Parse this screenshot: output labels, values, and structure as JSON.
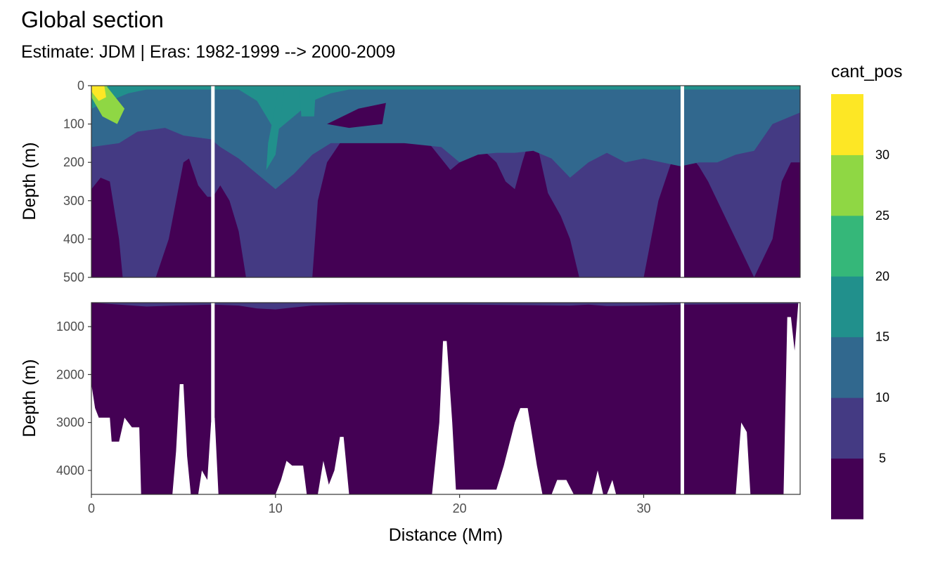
{
  "chart_data": {
    "type": "heatmap",
    "title": "Global section",
    "subtitle": "Estimate: JDM  | Eras: 1982-1999 --> 2000-2009",
    "xlabel": "Distance (Mm)",
    "ylabel": "Depth (m)",
    "xlim": [
      0,
      38.5
    ],
    "x_ticks": [
      0,
      10,
      20,
      30
    ],
    "panels": [
      {
        "name": "upper",
        "ylim": [
          0,
          500
        ],
        "y_ticks": [
          0,
          100,
          200,
          300,
          400,
          500
        ]
      },
      {
        "name": "lower",
        "ylim": [
          500,
          4500
        ],
        "y_ticks": [
          1000,
          2000,
          3000,
          4000
        ]
      }
    ],
    "gaps_at_distance": [
      6.6,
      32.1
    ],
    "legend": {
      "title": "cant_pos",
      "position": "right",
      "breaks": [
        5,
        10,
        15,
        20,
        25,
        30
      ],
      "colors": [
        "#440154",
        "#443A83",
        "#31688E",
        "#21908C",
        "#35B779",
        "#8FD744",
        "#FDE725"
      ]
    },
    "isolines_upper": [
      {
        "level": 5,
        "depths": [
          [
            0,
            160
          ],
          [
            1.5,
            150
          ],
          [
            2.5,
            120
          ],
          [
            4,
            110
          ],
          [
            5,
            130
          ],
          [
            6.5,
            140
          ],
          [
            7,
            160
          ],
          [
            8,
            190
          ],
          [
            9,
            230
          ],
          [
            10,
            270
          ],
          [
            11,
            230
          ],
          [
            12,
            180
          ],
          [
            13,
            150
          ],
          [
            15,
            150
          ],
          [
            17,
            150
          ],
          [
            19,
            160
          ],
          [
            20,
            200
          ],
          [
            21,
            180
          ],
          [
            22,
            175
          ],
          [
            23,
            175
          ],
          [
            24,
            170
          ],
          [
            25,
            190
          ],
          [
            26,
            240
          ],
          [
            27,
            200
          ],
          [
            28,
            175
          ],
          [
            29,
            200
          ],
          [
            30,
            190
          ],
          [
            31,
            200
          ],
          [
            32,
            210
          ],
          [
            33,
            200
          ],
          [
            34,
            200
          ],
          [
            35,
            180
          ],
          [
            36,
            170
          ],
          [
            37,
            100
          ],
          [
            38.5,
            70
          ]
        ]
      },
      {
        "level": 10,
        "depths": [
          [
            0,
            60
          ],
          [
            1,
            40
          ],
          [
            2,
            20
          ],
          [
            3,
            10
          ],
          [
            8,
            10
          ],
          [
            9,
            40
          ],
          [
            10,
            120
          ],
          [
            11,
            80
          ],
          [
            12,
            40
          ],
          [
            13,
            20
          ],
          [
            14,
            10
          ],
          [
            38.5,
            10
          ]
        ]
      },
      {
        "level": 15,
        "depths": [
          [
            0,
            20
          ],
          [
            0.5,
            10
          ],
          [
            1,
            0
          ],
          [
            38.5,
            0
          ]
        ]
      },
      {
        "level": 20,
        "depths": [
          [
            0,
            12
          ],
          [
            0.5,
            6
          ],
          [
            1,
            0
          ],
          [
            38.5,
            0
          ]
        ]
      }
    ],
    "low_core_upper": [
      [
        0,
        270
      ],
      [
        0.5,
        240
      ],
      [
        1,
        250
      ],
      [
        1.5,
        400
      ],
      [
        1.7,
        500
      ],
      [
        3.5,
        500
      ],
      [
        4.2,
        400
      ],
      [
        4.8,
        250
      ],
      [
        5,
        200
      ],
      [
        5.3,
        190
      ],
      [
        5.8,
        260
      ],
      [
        6.3,
        290
      ],
      [
        6.6,
        290
      ],
      [
        7,
        260
      ],
      [
        7.5,
        300
      ],
      [
        8,
        380
      ],
      [
        8.4,
        500
      ],
      [
        12,
        500
      ],
      [
        12.3,
        300
      ],
      [
        12.8,
        200
      ],
      [
        13.5,
        150
      ],
      [
        14.5,
        120
      ],
      [
        15.5,
        105
      ],
      [
        17,
        100
      ],
      [
        18,
        130
      ],
      [
        19,
        190
      ],
      [
        19.5,
        220
      ],
      [
        20,
        200
      ],
      [
        20.6,
        160
      ],
      [
        21,
        155
      ],
      [
        22,
        200
      ],
      [
        22.5,
        250
      ],
      [
        23,
        270
      ],
      [
        23.4,
        200
      ],
      [
        23.8,
        140
      ],
      [
        24.2,
        150
      ],
      [
        24.8,
        280
      ],
      [
        25.5,
        340
      ],
      [
        26,
        400
      ],
      [
        26.5,
        500
      ],
      [
        30,
        500
      ],
      [
        30.8,
        300
      ],
      [
        31.5,
        200
      ],
      [
        32.1,
        180
      ],
      [
        32.5,
        180
      ],
      [
        33,
        210
      ],
      [
        33.5,
        250
      ],
      [
        34,
        300
      ],
      [
        34.5,
        350
      ],
      [
        35,
        400
      ],
      [
        35.5,
        450
      ],
      [
        36,
        500
      ],
      [
        37,
        400
      ],
      [
        37.5,
        250
      ],
      [
        38,
        200
      ],
      [
        38.5,
        200
      ]
    ],
    "bottom_topography": [
      [
        0,
        2200
      ],
      [
        0.2,
        2700
      ],
      [
        0.4,
        2900
      ],
      [
        1,
        2900
      ],
      [
        1.1,
        3400
      ],
      [
        1.5,
        3400
      ],
      [
        1.8,
        2900
      ],
      [
        2.2,
        3100
      ],
      [
        2.6,
        3100
      ],
      [
        2.7,
        4500
      ],
      [
        4.4,
        4500
      ],
      [
        4.6,
        3600
      ],
      [
        4.8,
        2200
      ],
      [
        5,
        2200
      ],
      [
        5.2,
        3700
      ],
      [
        5.4,
        4500
      ],
      [
        5.8,
        4500
      ],
      [
        6,
        4000
      ],
      [
        6.3,
        4200
      ],
      [
        6.5,
        3000
      ],
      [
        6.7,
        2900
      ],
      [
        6.9,
        4500
      ],
      [
        10,
        4500
      ],
      [
        10.3,
        4200
      ],
      [
        10.6,
        3800
      ],
      [
        10.9,
        3900
      ],
      [
        11.5,
        3900
      ],
      [
        11.7,
        4500
      ],
      [
        12.3,
        4500
      ],
      [
        12.6,
        3800
      ],
      [
        12.9,
        4300
      ],
      [
        13.2,
        4000
      ],
      [
        13.5,
        3300
      ],
      [
        13.7,
        3300
      ],
      [
        14,
        4500
      ],
      [
        18.5,
        4500
      ],
      [
        18.9,
        3000
      ],
      [
        19.1,
        1300
      ],
      [
        19.3,
        1300
      ],
      [
        19.6,
        3000
      ],
      [
        19.8,
        4400
      ],
      [
        22,
        4400
      ],
      [
        22.4,
        3900
      ],
      [
        23,
        3000
      ],
      [
        23.3,
        2700
      ],
      [
        23.7,
        2700
      ],
      [
        24.2,
        3900
      ],
      [
        24.5,
        4500
      ],
      [
        25,
        4500
      ],
      [
        25.3,
        4200
      ],
      [
        25.8,
        4200
      ],
      [
        26.2,
        4500
      ],
      [
        27.2,
        4500
      ],
      [
        27.5,
        4000
      ],
      [
        27.8,
        4500
      ],
      [
        28,
        4500
      ],
      [
        28.3,
        4200
      ],
      [
        28.5,
        4500
      ],
      [
        35,
        4500
      ],
      [
        35.3,
        3000
      ],
      [
        35.6,
        3200
      ],
      [
        35.8,
        4500
      ],
      [
        37.6,
        4500
      ],
      [
        37.8,
        800
      ],
      [
        38,
        800
      ],
      [
        38.2,
        1500
      ],
      [
        38.4,
        500
      ],
      [
        38.5,
        500
      ]
    ]
  }
}
